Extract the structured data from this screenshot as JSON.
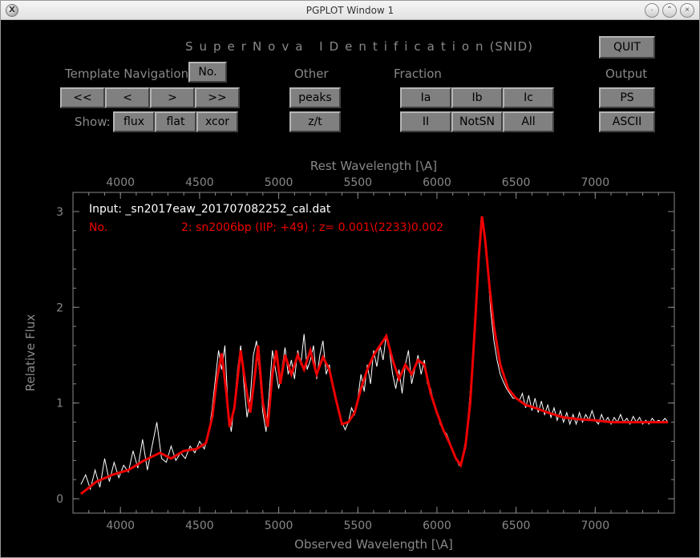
{
  "window": {
    "title": "PGPLOT Window 1",
    "app_icon_letter": "X"
  },
  "header": {
    "title_main": "SuperNova IDentification",
    "title_paren": "(SNID)",
    "quit_label": "QUIT"
  },
  "nav": {
    "section_label": "Template Navigation",
    "no_label": "No.",
    "first_label": "<<",
    "prev_label": "<",
    "next_label": ">",
    "last_label": ">>",
    "show_label": "Show:",
    "flux_label": "flux",
    "flat_label": "flat",
    "xcor_label": "xcor"
  },
  "other": {
    "section_label": "Other",
    "peaks_label": "peaks",
    "zt_label": "z/t"
  },
  "fraction": {
    "section_label": "Fraction",
    "Ia_label": "Ia",
    "Ib_label": "Ib",
    "Ic_label": "Ic",
    "II_label": "II",
    "NotSN_label": "NotSN",
    "All_label": "All"
  },
  "output": {
    "section_label": "Output",
    "ps_label": "PS",
    "ascii_label": "ASCII"
  },
  "chart": {
    "type": "line",
    "top_axis_label": "Rest Wavelength [\\A]",
    "bottom_axis_label": "Observed Wavelength [\\A]",
    "y_axis_label": "Relative Flux",
    "x_ticks": [
      4000,
      4500,
      5000,
      5500,
      6000,
      6500,
      7000
    ],
    "x_lim": [
      3700,
      7500
    ],
    "y_ticks": [
      0,
      1,
      2,
      3
    ],
    "y_lim": [
      -0.15,
      3.2
    ],
    "background_color": "#000000",
    "axis_color": "#888888",
    "data_color": "#ffffff",
    "template_color": "#ee0000",
    "template_linewidth": 3,
    "data_linewidth": 1,
    "annotation_input_prefix": "Input:",
    "annotation_input": "_sn2017eaw_201707082252_cal.dat",
    "annotation_no_prefix": "No.",
    "annotation_template": "2: sn2006bp (IIP; +49) ; z=  0.001\\(2233)0.002",
    "data_series": [
      [
        3750,
        0.15
      ],
      [
        3780,
        0.25
      ],
      [
        3810,
        0.1
      ],
      [
        3840,
        0.3
      ],
      [
        3870,
        0.12
      ],
      [
        3900,
        0.42
      ],
      [
        3930,
        0.18
      ],
      [
        3960,
        0.38
      ],
      [
        3990,
        0.22
      ],
      [
        4020,
        0.35
      ],
      [
        4050,
        0.28
      ],
      [
        4080,
        0.5
      ],
      [
        4110,
        0.32
      ],
      [
        4140,
        0.62
      ],
      [
        4170,
        0.3
      ],
      [
        4200,
        0.55
      ],
      [
        4230,
        0.8
      ],
      [
        4260,
        0.42
      ],
      [
        4290,
        0.38
      ],
      [
        4320,
        0.55
      ],
      [
        4350,
        0.4
      ],
      [
        4380,
        0.48
      ],
      [
        4410,
        0.42
      ],
      [
        4440,
        0.55
      ],
      [
        4470,
        0.48
      ],
      [
        4500,
        0.6
      ],
      [
        4530,
        0.52
      ],
      [
        4560,
        0.7
      ],
      [
        4580,
        0.95
      ],
      [
        4600,
        1.25
      ],
      [
        4620,
        1.55
      ],
      [
        4640,
        1.35
      ],
      [
        4660,
        1.6
      ],
      [
        4680,
        0.95
      ],
      [
        4700,
        0.7
      ],
      [
        4720,
        1.0
      ],
      [
        4740,
        1.35
      ],
      [
        4760,
        1.6
      ],
      [
        4780,
        1.2
      ],
      [
        4800,
        0.85
      ],
      [
        4820,
        1.05
      ],
      [
        4840,
        1.5
      ],
      [
        4860,
        1.65
      ],
      [
        4880,
        1.3
      ],
      [
        4900,
        0.9
      ],
      [
        4920,
        0.7
      ],
      [
        4940,
        1.1
      ],
      [
        4960,
        1.55
      ],
      [
        4980,
        1.35
      ],
      [
        5000,
        1.15
      ],
      [
        5020,
        1.35
      ],
      [
        5040,
        1.58
      ],
      [
        5060,
        1.3
      ],
      [
        5080,
        1.45
      ],
      [
        5100,
        1.25
      ],
      [
        5120,
        1.55
      ],
      [
        5140,
        1.4
      ],
      [
        5160,
        1.72
      ],
      [
        5180,
        1.35
      ],
      [
        5200,
        1.45
      ],
      [
        5220,
        1.6
      ],
      [
        5240,
        1.25
      ],
      [
        5260,
        1.5
      ],
      [
        5280,
        1.65
      ],
      [
        5300,
        1.3
      ],
      [
        5320,
        1.4
      ],
      [
        5340,
        1.2
      ],
      [
        5360,
        1.05
      ],
      [
        5380,
        0.9
      ],
      [
        5400,
        0.8
      ],
      [
        5420,
        0.72
      ],
      [
        5440,
        0.8
      ],
      [
        5460,
        0.95
      ],
      [
        5480,
        0.88
      ],
      [
        5500,
        1.05
      ],
      [
        5520,
        1.3
      ],
      [
        5540,
        1.12
      ],
      [
        5560,
        1.4
      ],
      [
        5580,
        1.2
      ],
      [
        5600,
        1.55
      ],
      [
        5620,
        1.38
      ],
      [
        5640,
        1.6
      ],
      [
        5660,
        1.45
      ],
      [
        5680,
        1.72
      ],
      [
        5700,
        1.55
      ],
      [
        5720,
        1.3
      ],
      [
        5740,
        1.15
      ],
      [
        5760,
        1.35
      ],
      [
        5780,
        1.1
      ],
      [
        5800,
        1.4
      ],
      [
        5820,
        1.55
      ],
      [
        5840,
        1.2
      ],
      [
        5860,
        1.35
      ],
      [
        5880,
        1.5
      ],
      [
        5900,
        1.3
      ],
      [
        5920,
        1.45
      ],
      [
        5940,
        1.2
      ],
      [
        5960,
        1.15
      ],
      [
        5980,
        1.0
      ],
      [
        6000,
        0.9
      ],
      [
        6020,
        0.78
      ],
      [
        6040,
        0.72
      ],
      [
        6060,
        0.68
      ],
      [
        6080,
        0.6
      ],
      [
        6100,
        0.5
      ],
      [
        6120,
        0.42
      ],
      [
        6140,
        0.35
      ],
      [
        6160,
        0.42
      ],
      [
        6180,
        0.6
      ],
      [
        6200,
        0.9
      ],
      [
        6220,
        1.35
      ],
      [
        6240,
        1.9
      ],
      [
        6260,
        2.5
      ],
      [
        6280,
        2.95
      ],
      [
        6300,
        2.8
      ],
      [
        6320,
        2.4
      ],
      [
        6340,
        1.95
      ],
      [
        6360,
        1.65
      ],
      [
        6380,
        1.45
      ],
      [
        6400,
        1.3
      ],
      [
        6420,
        1.22
      ],
      [
        6440,
        1.15
      ],
      [
        6460,
        1.1
      ],
      [
        6480,
        1.05
      ],
      [
        6500,
        1.05
      ],
      [
        6520,
        1.02
      ],
      [
        6540,
        1.1
      ],
      [
        6560,
        0.95
      ],
      [
        6580,
        1.08
      ],
      [
        6600,
        0.92
      ],
      [
        6620,
        1.05
      ],
      [
        6640,
        0.9
      ],
      [
        6660,
        1.02
      ],
      [
        6680,
        0.88
      ],
      [
        6700,
        0.98
      ],
      [
        6720,
        0.85
      ],
      [
        6740,
        0.95
      ],
      [
        6760,
        0.82
      ],
      [
        6780,
        0.92
      ],
      [
        6800,
        0.8
      ],
      [
        6820,
        0.9
      ],
      [
        6840,
        0.78
      ],
      [
        6860,
        0.88
      ],
      [
        6880,
        0.78
      ],
      [
        6900,
        0.9
      ],
      [
        6920,
        0.8
      ],
      [
        6940,
        0.88
      ],
      [
        6960,
        0.82
      ],
      [
        6980,
        0.92
      ],
      [
        7000,
        0.82
      ],
      [
        7020,
        0.78
      ],
      [
        7040,
        0.88
      ],
      [
        7060,
        0.8
      ],
      [
        7080,
        0.85
      ],
      [
        7100,
        0.78
      ],
      [
        7120,
        0.85
      ],
      [
        7140,
        0.8
      ],
      [
        7160,
        0.88
      ],
      [
        7180,
        0.8
      ],
      [
        7200,
        0.84
      ],
      [
        7220,
        0.78
      ],
      [
        7240,
        0.86
      ],
      [
        7260,
        0.8
      ],
      [
        7280,
        0.85
      ],
      [
        7300,
        0.78
      ],
      [
        7320,
        0.82
      ],
      [
        7340,
        0.78
      ],
      [
        7360,
        0.84
      ],
      [
        7380,
        0.8
      ],
      [
        7400,
        0.82
      ],
      [
        7420,
        0.8
      ],
      [
        7440,
        0.84
      ],
      [
        7460,
        0.8
      ]
    ],
    "template_series": [
      [
        3750,
        0.05
      ],
      [
        3850,
        0.18
      ],
      [
        3950,
        0.25
      ],
      [
        4050,
        0.3
      ],
      [
        4150,
        0.4
      ],
      [
        4250,
        0.48
      ],
      [
        4320,
        0.42
      ],
      [
        4400,
        0.5
      ],
      [
        4480,
        0.52
      ],
      [
        4540,
        0.58
      ],
      [
        4580,
        0.85
      ],
      [
        4610,
        1.25
      ],
      [
        4640,
        1.52
      ],
      [
        4670,
        1.1
      ],
      [
        4690,
        0.75
      ],
      [
        4720,
        0.95
      ],
      [
        4760,
        1.55
      ],
      [
        4790,
        1.2
      ],
      [
        4820,
        0.9
      ],
      [
        4850,
        1.3
      ],
      [
        4870,
        1.6
      ],
      [
        4900,
        1.0
      ],
      [
        4930,
        0.75
      ],
      [
        4960,
        1.3
      ],
      [
        4985,
        1.55
      ],
      [
        5010,
        1.2
      ],
      [
        5040,
        1.5
      ],
      [
        5080,
        1.3
      ],
      [
        5120,
        1.5
      ],
      [
        5160,
        1.35
      ],
      [
        5200,
        1.55
      ],
      [
        5240,
        1.3
      ],
      [
        5280,
        1.48
      ],
      [
        5320,
        1.35
      ],
      [
        5360,
        1.05
      ],
      [
        5400,
        0.78
      ],
      [
        5440,
        0.8
      ],
      [
        5480,
        0.9
      ],
      [
        5520,
        1.15
      ],
      [
        5560,
        1.35
      ],
      [
        5600,
        1.5
      ],
      [
        5640,
        1.6
      ],
      [
        5680,
        1.7
      ],
      [
        5720,
        1.45
      ],
      [
        5760,
        1.25
      ],
      [
        5800,
        1.4
      ],
      [
        5840,
        1.3
      ],
      [
        5880,
        1.45
      ],
      [
        5920,
        1.4
      ],
      [
        5960,
        1.1
      ],
      [
        6000,
        0.9
      ],
      [
        6040,
        0.72
      ],
      [
        6080,
        0.58
      ],
      [
        6120,
        0.42
      ],
      [
        6150,
        0.35
      ],
      [
        6180,
        0.55
      ],
      [
        6210,
        1.0
      ],
      [
        6240,
        1.8
      ],
      [
        6265,
        2.55
      ],
      [
        6285,
        2.95
      ],
      [
        6305,
        2.7
      ],
      [
        6330,
        2.25
      ],
      [
        6360,
        1.8
      ],
      [
        6400,
        1.4
      ],
      [
        6450,
        1.15
      ],
      [
        6500,
        1.05
      ],
      [
        6560,
        0.98
      ],
      [
        6620,
        0.95
      ],
      [
        6700,
        0.9
      ],
      [
        6800,
        0.85
      ],
      [
        6900,
        0.83
      ],
      [
        7000,
        0.82
      ],
      [
        7100,
        0.8
      ],
      [
        7200,
        0.8
      ],
      [
        7300,
        0.8
      ],
      [
        7400,
        0.8
      ],
      [
        7460,
        0.8
      ]
    ]
  }
}
